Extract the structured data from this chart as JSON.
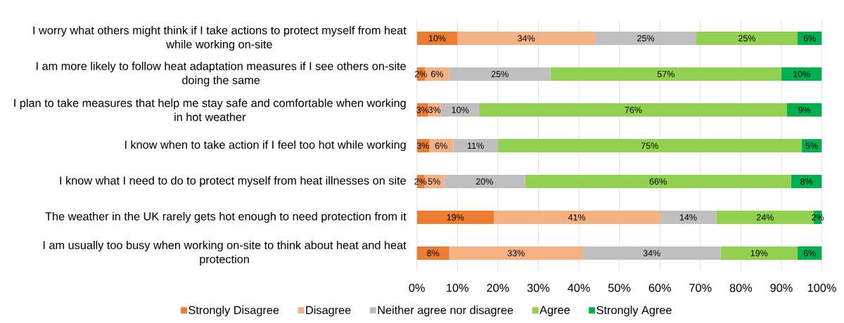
{
  "chart_data": {
    "type": "bar",
    "orientation": "horizontal",
    "stacked": true,
    "categories": [
      "I worry what others might think if I take actions to protect myself from heat while working on-site",
      "I am more likely to follow heat adaptation measures if I see others on-site doing the same",
      "I plan to take measures that help me stay safe and comfortable when working in hot weather",
      "I know when to take action if I feel too hot while working",
      "I know what I need to do to protect myself from heat illnesses on site",
      "The weather in the UK rarely gets hot enough to need protection from it",
      "I am usually too busy when working on-site to think about heat and heat protection"
    ],
    "series": [
      {
        "name": "Strongly Disagree",
        "color": "#ed7d31",
        "values": [
          10,
          2,
          2.8,
          3,
          1.8,
          19,
          8
        ],
        "value_labels": [
          "10%",
          "2%",
          "3%",
          "3%",
          "2%",
          "19%",
          "8%"
        ]
      },
      {
        "name": "Disagree",
        "color": "#f4b183",
        "values": [
          34,
          6,
          3.1,
          6,
          4.9,
          41,
          33
        ],
        "value_labels": [
          "34%",
          "6%",
          "3%",
          "6%",
          "5%",
          "41%",
          "33%"
        ]
      },
      {
        "name": "Neither agree nor disagree",
        "color": "#bfbfbf",
        "values": [
          25,
          25,
          9.6,
          11,
          20,
          14,
          34
        ],
        "value_labels": [
          "25%",
          "25%",
          "10%",
          "11%",
          "20%",
          "14%",
          "34%"
        ]
      },
      {
        "name": "Agree",
        "color": "#92d050",
        "values": [
          25,
          57,
          75.9,
          75,
          65.7,
          24,
          19
        ],
        "value_labels": [
          "25%",
          "57%",
          "76%",
          "75%",
          "66%",
          "24%",
          "19%"
        ]
      },
      {
        "name": "Strongly Agree",
        "color": "#00b050",
        "values": [
          6,
          10,
          8.6,
          5,
          7.6,
          2,
          6
        ],
        "value_labels": [
          "6%",
          "10%",
          "9%",
          "5%",
          "8%",
          "2%",
          "6%"
        ]
      }
    ],
    "xlim": [
      0,
      100
    ],
    "xticks": [
      {
        "value": 0,
        "label": "0%"
      },
      {
        "value": 10,
        "label": "10%"
      },
      {
        "value": 20,
        "label": "20%"
      },
      {
        "value": 30,
        "label": "30%"
      },
      {
        "value": 40,
        "label": "40%"
      },
      {
        "value": 50,
        "label": "50%"
      },
      {
        "value": 60,
        "label": "60%"
      },
      {
        "value": 70,
        "label": "70%"
      },
      {
        "value": 80,
        "label": "80%"
      },
      {
        "value": 90,
        "label": "90%"
      },
      {
        "value": 100,
        "label": "100%"
      }
    ],
    "grid": "x",
    "legend": "bottom"
  }
}
